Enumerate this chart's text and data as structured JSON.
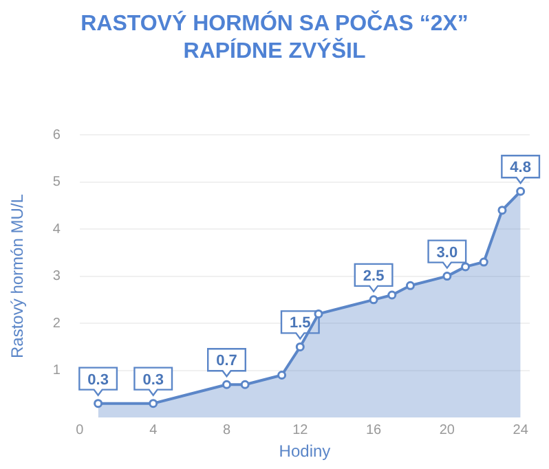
{
  "chart_data": {
    "type": "area",
    "title": "RASTOVÝ HORMÓN SA POČAS “2X” RAPÍDNE ZVÝŠIL",
    "xlabel": "Hodiny",
    "ylabel": "Rastový hormón MU/L",
    "x": [
      1,
      4,
      8,
      9,
      11,
      12,
      13,
      16,
      17,
      18,
      20,
      21,
      22,
      23,
      24
    ],
    "series": [
      {
        "color": "#5b86c8",
        "values": [
          0.3,
          0.3,
          0.7,
          0.7,
          0.9,
          1.5,
          2.2,
          2.5,
          2.6,
          2.8,
          3.0,
          3.2,
          3.3,
          4.4,
          4.8
        ],
        "value_labels": [
          "0.3",
          "0.3",
          "0.7",
          null,
          null,
          "1.5",
          null,
          "2.5",
          null,
          null,
          "3.0",
          null,
          null,
          null,
          "4.8"
        ]
      }
    ],
    "xlim": [
      0,
      24.5
    ],
    "xticks": [
      0,
      4,
      8,
      12,
      16,
      20,
      24
    ],
    "ylim": [
      0,
      6
    ],
    "yticks": [
      1,
      2,
      3,
      4,
      5,
      6
    ],
    "grid": "y",
    "legend": false,
    "marker": "circle",
    "line_style": "solid"
  }
}
